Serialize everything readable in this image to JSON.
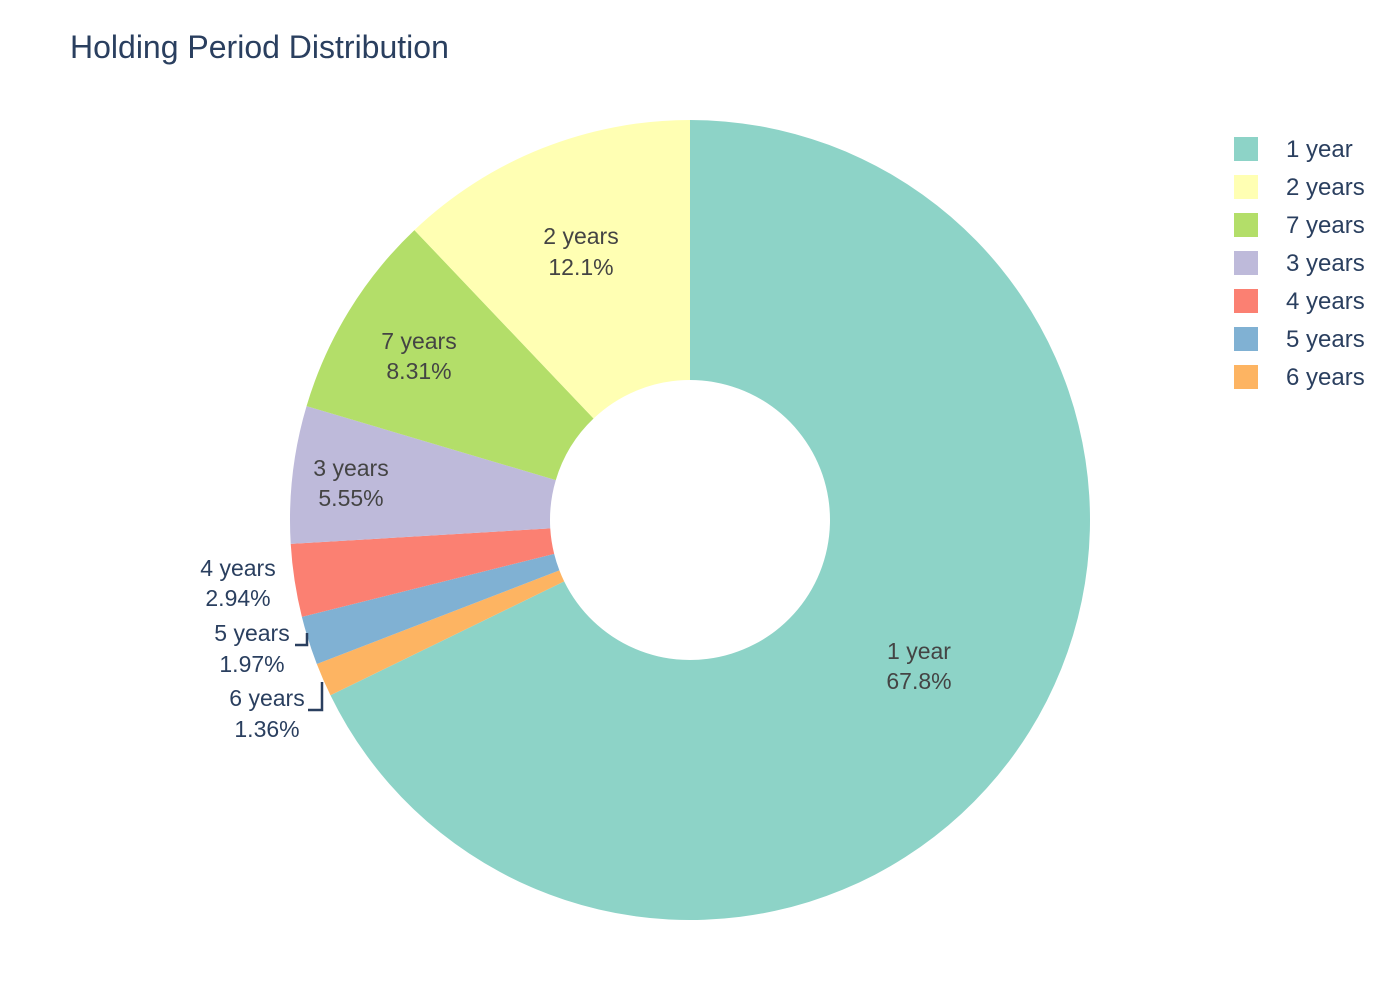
{
  "chart_data": {
    "type": "pie",
    "title": "Holding Period Distribution",
    "hole": true,
    "legend_position": "top-right",
    "slices": [
      {
        "label": "1 year",
        "percent_text": "67.8%",
        "value": 67.8,
        "color": "#8dd3c7",
        "label_position": "inside"
      },
      {
        "label": "6 years",
        "percent_text": "1.36%",
        "value": 1.36,
        "color": "#fdb462",
        "label_position": "outside"
      },
      {
        "label": "5 years",
        "percent_text": "1.97%",
        "value": 1.97,
        "color": "#80b1d3",
        "label_position": "outside"
      },
      {
        "label": "4 years",
        "percent_text": "2.94%",
        "value": 2.94,
        "color": "#fb8072",
        "label_position": "outside"
      },
      {
        "label": "3 years",
        "percent_text": "5.55%",
        "value": 5.55,
        "color": "#bebada",
        "label_position": "inside"
      },
      {
        "label": "7 years",
        "percent_text": "8.31%",
        "value": 8.31,
        "color": "#b3de69",
        "label_position": "inside"
      },
      {
        "label": "2 years",
        "percent_text": "12.1%",
        "value": 12.1,
        "color": "#ffffb3",
        "label_position": "inside"
      }
    ],
    "legend": [
      {
        "label": "1 year",
        "color": "#8dd3c7"
      },
      {
        "label": "2 years",
        "color": "#ffffb3"
      },
      {
        "label": "7 years",
        "color": "#b3de69"
      },
      {
        "label": "3 years",
        "color": "#bebada"
      },
      {
        "label": "4 years",
        "color": "#fb8072"
      },
      {
        "label": "5 years",
        "color": "#80b1d3"
      },
      {
        "label": "6 years",
        "color": "#fdb462"
      }
    ]
  }
}
